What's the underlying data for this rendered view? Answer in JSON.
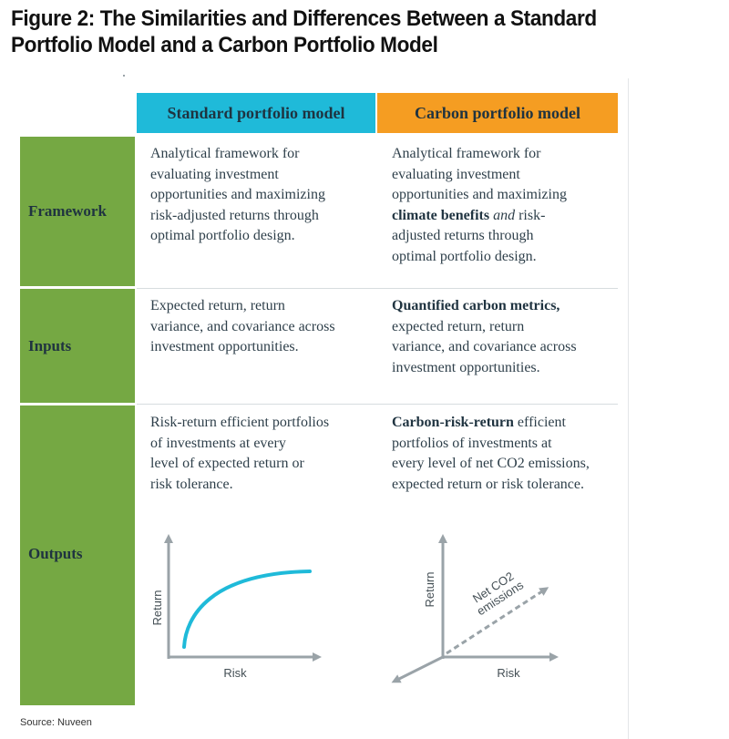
{
  "title": {
    "line1": "Figure 2: The Similarities and Differences Between a Standard",
    "line2": "Portfolio Model and a Carbon Portfolio Model"
  },
  "columns": {
    "standard": "Standard portfolio model",
    "carbon": "Carbon portfolio model"
  },
  "rows": {
    "framework": {
      "label": "Framework",
      "standard": [
        "Analytical framework for",
        "evaluating investment",
        "opportunities and maximizing",
        "risk-adjusted returns through",
        "optimal portfolio design."
      ],
      "carbon": {
        "l1": "Analytical framework for",
        "l2": "evaluating investment",
        "l3": "opportunities and maximizing",
        "l4_bold": "climate benefits",
        "l4_italic": "and",
        "l4_rest": " risk-",
        "l5": "adjusted returns through",
        "l6": "optimal portfolio design."
      }
    },
    "inputs": {
      "label": "Inputs",
      "standard": [
        "Expected return, return",
        "variance, and covariance across",
        "investment opportunities."
      ],
      "carbon": {
        "l1_bold": "Quantified carbon metrics,",
        "l2": "expected return, return",
        "l3": "variance, and covariance across",
        "l4": "investment opportunities."
      }
    },
    "outputs": {
      "label": "Outputs",
      "standard": [
        "Risk-return efficient portfolios",
        "of investments at every",
        "level of expected return or",
        "risk tolerance."
      ],
      "carbon": {
        "l1_bold": "Carbon-risk-return",
        "l1_rest": " efficient",
        "l2": "portfolios of investments at",
        "l3": "every level of net CO2 emissions,",
        "l4": "expected return or risk tolerance."
      }
    }
  },
  "graphs": {
    "standard": {
      "x_label": "Risk",
      "y_label": "Return"
    },
    "carbon": {
      "x_label": "Risk",
      "y_label": "Return",
      "z_label_1": "Net CO2",
      "z_label_2": "emissions"
    }
  },
  "colors": {
    "standard_header": "#1fbad9",
    "carbon_header": "#f59d22",
    "row_label": "#75a843",
    "curve": "#1fbad9",
    "axis": "#9aa3a8"
  },
  "source": "Source: Nuveen"
}
